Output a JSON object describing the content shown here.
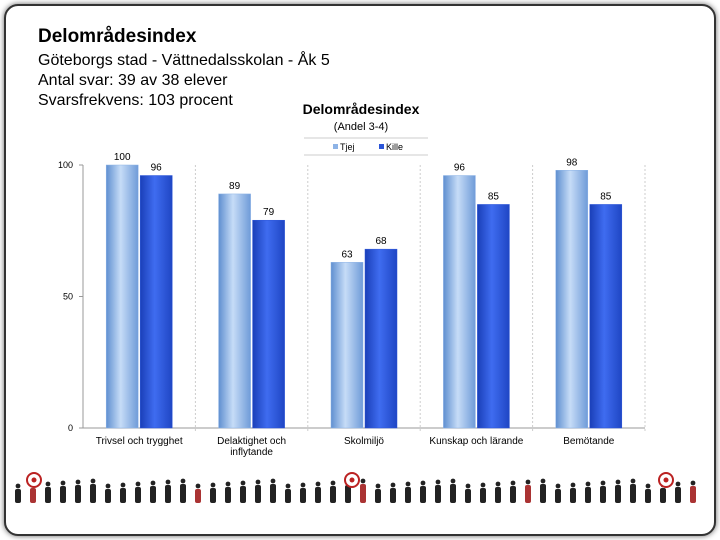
{
  "slide": {
    "title": "Delområdesindex",
    "lines": [
      "Göteborgs stad - Vättnedalsskolan - Åk 5",
      "Antal svar: 39 av 38 elever",
      "Svarsfrekvens: 103 procent"
    ]
  },
  "chart_data": {
    "type": "bar",
    "title": "Delområdesindex",
    "subtitle": "(Andel 3-4)",
    "categories": [
      "Trivsel och trygghet",
      "Delaktighet och inflytande",
      "Skolmiljö",
      "Kunskap och lärande",
      "Bemötande"
    ],
    "series": [
      {
        "name": "Tjej",
        "color": "#8db3e6",
        "values": [
          100,
          89,
          63,
          96,
          98
        ]
      },
      {
        "name": "Kille",
        "color": "#2b55d8",
        "values": [
          96,
          79,
          68,
          85,
          85
        ]
      }
    ],
    "ylim": [
      0,
      100
    ],
    "yticks": [
      0,
      50,
      100
    ],
    "legend": "top"
  }
}
